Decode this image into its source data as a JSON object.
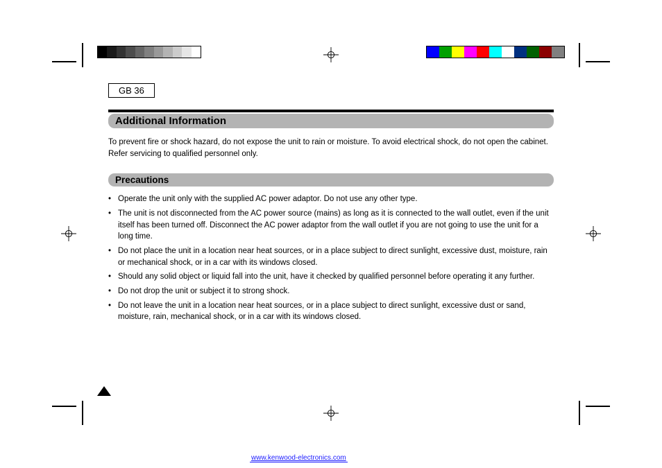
{
  "page_number": "GB 36",
  "grayscale_swatches": [
    "#000000",
    "#1a1a1a",
    "#333333",
    "#4d4d4d",
    "#666666",
    "#808080",
    "#999999",
    "#b3b3b3",
    "#cccccc",
    "#e6e6e6",
    "#ffffff"
  ],
  "color_swatches": [
    "#0000ff",
    "#00a000",
    "#ffff00",
    "#ff00ff",
    "#ff0000",
    "#00ffff",
    "#ffffff",
    "#003080",
    "#006000",
    "#8b0000",
    "#808080"
  ],
  "title": "Additional Information",
  "intro": "To prevent fire or shock hazard, do not expose the unit to rain or moisture. To avoid electrical shock, do not open the cabinet. Refer servicing to qualified personnel only.",
  "subheading": "Precautions",
  "cautions": [
    "Operate the unit only with the supplied AC power adaptor. Do not use any other type.",
    "The unit is not disconnected from the AC power source (mains) as long as it is connected to the wall outlet, even if the unit itself has been turned off. Disconnect the AC power adaptor from the wall outlet if you are not going to use the unit for a long time.",
    "Do not place the unit in a location near heat sources, or in a place subject to direct sunlight, excessive dust, moisture, rain or mechanical shock, or in a car with its windows closed.",
    "Should any solid object or liquid fall into the unit, have it checked by qualified personnel before operating it any further.",
    "Do not drop the unit or subject it to strong shock.",
    "Do not leave the unit in a location near heat sources, or in a place subject to direct sunlight, excessive dust or sand, moisture, rain, mechanical shock, or in a car with its windows closed."
  ],
  "footer_link": "www.kenwood-electronics.com"
}
